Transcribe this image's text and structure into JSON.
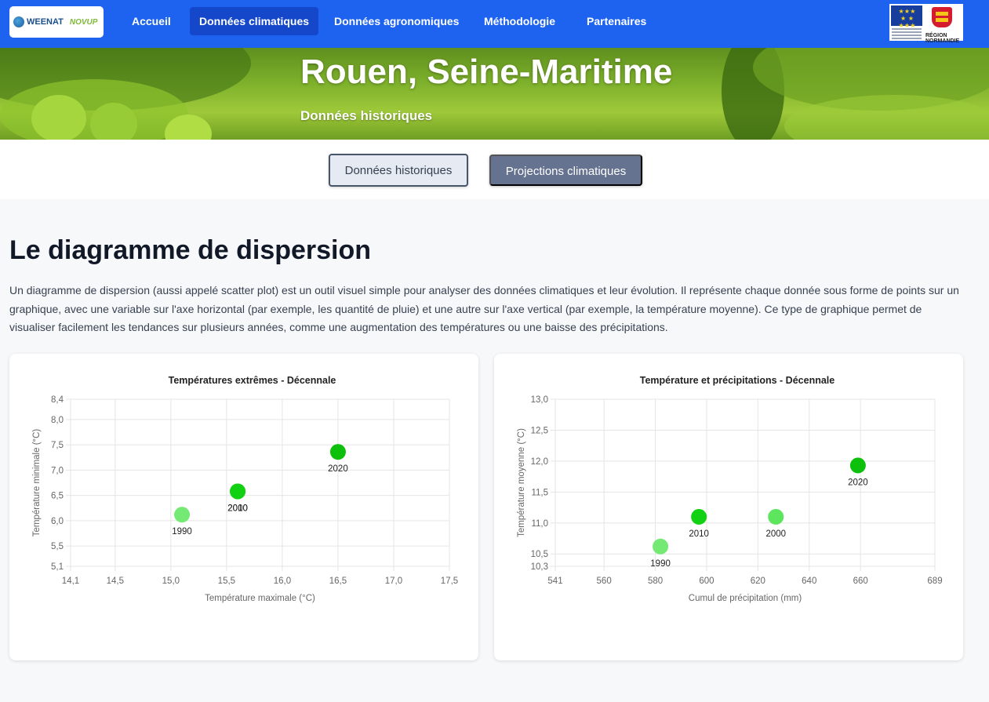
{
  "nav": {
    "logo_text": "WEENAT",
    "logo_sub": "NOVUP",
    "items": [
      {
        "label": "Accueil"
      },
      {
        "label": "Données climatiques",
        "active": true
      },
      {
        "label": "Données agronomiques"
      },
      {
        "label": "Méthodologie"
      },
      {
        "label": "Partenaires"
      }
    ],
    "partner_text": "RÉGION NORMANDIE"
  },
  "hero": {
    "title": "Rouen, Seine-Maritime",
    "subtitle": "Données historiques"
  },
  "toggle": {
    "historical": "Données historiques",
    "projections": "Projections climatiques"
  },
  "section": {
    "title": "Le diagramme de dispersion",
    "intro": "Un diagramme de dispersion (aussi appelé scatter plot) est un outil visuel simple pour analyser des données climatiques et leur évolution. Il représente chaque donnée sous forme de points sur un graphique, avec une variable sur l'axe horizontal (par exemple, les quantité de pluie) et une autre sur l'axe vertical (par exemple, la température moyenne). Ce type de graphique permet de visualiser facilement les tendances sur plusieurs années, comme une augmentation des températures ou une baisse des précipitations."
  },
  "chart_data": [
    {
      "type": "scatter",
      "title": "Températures extrêmes - Décennale",
      "xlabel": "Température maximale (°C)",
      "ylabel": "Température minimale (°C)",
      "xlim": [
        14.1,
        17.5
      ],
      "ylim": [
        5.1,
        8.4
      ],
      "xticks": [
        "14,1",
        "14,5",
        "15,0",
        "15,5",
        "16,0",
        "16,5",
        "17,0",
        "17,5"
      ],
      "xtick_values": [
        14.1,
        14.5,
        15.0,
        15.5,
        16.0,
        16.5,
        17.0,
        17.5
      ],
      "yticks": [
        "5,1",
        "5,5",
        "6,0",
        "6,5",
        "7,0",
        "7,5",
        "8,0",
        "8,4"
      ],
      "ytick_values": [
        5.1,
        5.5,
        6.0,
        6.5,
        7.0,
        7.5,
        8.0,
        8.4
      ],
      "grid": true,
      "points": [
        {
          "label": "1990",
          "x": 15.1,
          "y": 6.12,
          "color": "#74ea74"
        },
        {
          "label": "2000",
          "x": 15.6,
          "y": 6.58,
          "color": "#1fd61f"
        },
        {
          "label": "2010",
          "x": 15.6,
          "y": 6.58,
          "color": "#12d012"
        },
        {
          "label": "2020",
          "x": 16.5,
          "y": 7.36,
          "color": "#0cc00c"
        }
      ]
    },
    {
      "type": "scatter",
      "title": "Température et précipitations - Décennale",
      "xlabel": "Cumul de précipitation (mm)",
      "ylabel": "Température moyenne (°C)",
      "xlim": [
        541,
        689
      ],
      "ylim": [
        10.3,
        13.0
      ],
      "xticks": [
        "541",
        "560",
        "580",
        "600",
        "620",
        "640",
        "660",
        "689"
      ],
      "xtick_values": [
        541,
        560,
        580,
        600,
        620,
        640,
        660,
        689
      ],
      "yticks": [
        "10,3",
        "10,5",
        "11,0",
        "11,5",
        "12,0",
        "12,5",
        "13,0"
      ],
      "ytick_values": [
        10.3,
        10.5,
        11.0,
        11.5,
        12.0,
        12.5,
        13.0
      ],
      "grid": true,
      "points": [
        {
          "label": "1990",
          "x": 582,
          "y": 10.62,
          "color": "#74ea74"
        },
        {
          "label": "2000",
          "x": 627,
          "y": 11.1,
          "color": "#5ee55e"
        },
        {
          "label": "2010",
          "x": 597,
          "y": 11.1,
          "color": "#12d012"
        },
        {
          "label": "2020",
          "x": 659,
          "y": 11.93,
          "color": "#0cc00c"
        }
      ]
    }
  ]
}
